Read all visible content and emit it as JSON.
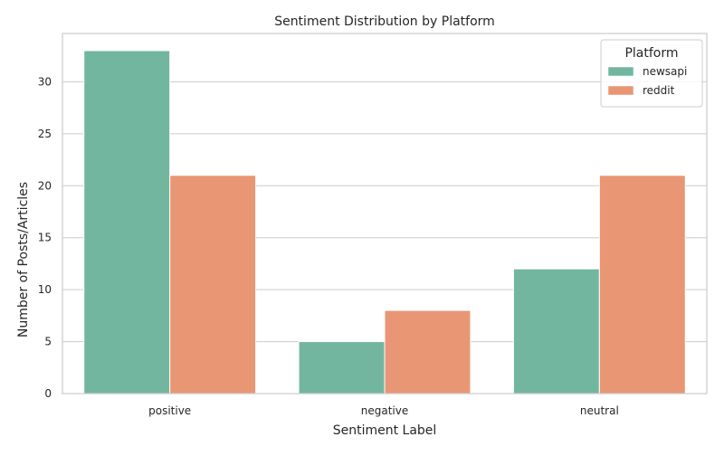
{
  "chart_data": {
    "type": "bar",
    "title": "Sentiment Distribution by Platform",
    "xlabel": "Sentiment Label",
    "ylabel": "Number of Posts/Articles",
    "categories": [
      "positive",
      "negative",
      "neutral"
    ],
    "series": [
      {
        "name": "newsapi",
        "values": [
          33,
          5,
          12
        ],
        "color": "#72b6a0"
      },
      {
        "name": "reddit",
        "values": [
          21,
          8,
          21
        ],
        "color": "#e99674"
      }
    ],
    "ylim": [
      0,
      34.65
    ],
    "yticks": [
      0,
      5,
      10,
      15,
      20,
      25,
      30
    ],
    "grid": "horizontal",
    "legend": {
      "title": "Platform",
      "placement": "top-right"
    }
  }
}
